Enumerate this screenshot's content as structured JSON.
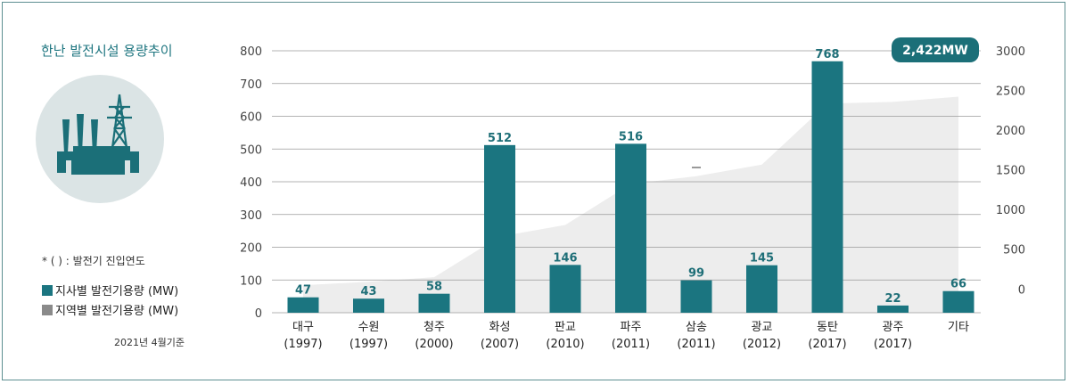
{
  "title": "한난 발전시설 용량추이",
  "note": "* (   ) :  발전기 진입연도",
  "legend": [
    {
      "label": "지사별 발전기용량 (MW)",
      "color": "#1b7580"
    },
    {
      "label": "지역별 발전기용량 (MW)",
      "color": "#8a8a8a"
    }
  ],
  "basis": "2021년 4월기준",
  "icon": "power-plant-icon",
  "chart_data": {
    "type": "bar",
    "categories": [
      "대구\n(1997)",
      "수원\n(1997)",
      "청주\n(2000)",
      "화성\n(2007)",
      "판교\n(2010)",
      "파주\n(2011)",
      "삼송\n(2011)",
      "광교\n(2012)",
      "동탄\n(2017)",
      "광주\n(2017)",
      "기타"
    ],
    "series": [
      {
        "name": "지사별 발전기용량 (MW)",
        "values": [
          47,
          43,
          58,
          512,
          146,
          516,
          99,
          145,
          768,
          22,
          66
        ],
        "axis": "left",
        "color": "#1b7580"
      },
      {
        "name": "지역별 발전기용량 (MW)",
        "type": "area",
        "axis": "right",
        "color": "#ededed",
        "values": [
          47,
          90,
          148,
          660,
          806,
          1322,
          1421,
          1566,
          2334,
          2356,
          2422
        ]
      }
    ],
    "y_left": {
      "ticks": [
        0,
        100,
        200,
        300,
        400,
        500,
        600,
        700,
        800
      ],
      "range": [
        0,
        800
      ]
    },
    "y_right": {
      "ticks": [
        0,
        500,
        1000,
        1500,
        2000,
        2500,
        3000
      ],
      "range": [
        -300,
        3000
      ]
    },
    "total_label": "2,422MW",
    "grid": true
  }
}
